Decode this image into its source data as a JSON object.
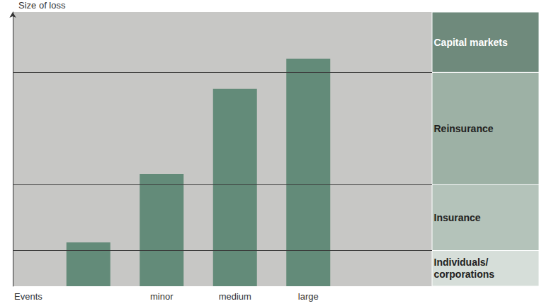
{
  "chart_data": {
    "type": "bar",
    "y_label": "Size of loss",
    "x_label": "Events",
    "categories": [
      null,
      "minor",
      "medium",
      "large"
    ],
    "values": [
      16,
      41,
      72,
      83
    ],
    "color": "#5a8572",
    "ylim": [
      0,
      100
    ],
    "tick_labels": false,
    "bands": [
      {
        "label": "Individuals/corporations",
        "from": 0,
        "to": 13,
        "color": "#d6ded9"
      },
      {
        "label": "Insurance",
        "from": 13,
        "to": 37,
        "color": "#b4c3ba"
      },
      {
        "label": "Reinsurance",
        "from": 37,
        "to": 78,
        "color": "#9db1a5"
      },
      {
        "label": "Capital markets",
        "from": 78,
        "to": 100,
        "color": "#6f8a7c"
      }
    ]
  }
}
